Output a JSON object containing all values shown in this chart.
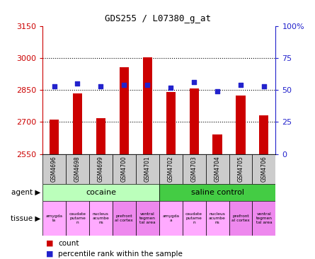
{
  "title": "GDS255 / L07380_g_at",
  "samples": [
    "GSM4696",
    "GSM4698",
    "GSM4699",
    "GSM4700",
    "GSM4701",
    "GSM4702",
    "GSM4703",
    "GSM4704",
    "GSM4705",
    "GSM4706"
  ],
  "counts": [
    2712,
    2833,
    2718,
    2958,
    3003,
    2840,
    2858,
    2643,
    2825,
    2730
  ],
  "percentiles": [
    53,
    55,
    53,
    54,
    54,
    52,
    56,
    49,
    54,
    53
  ],
  "ymin": 2550,
  "ymax": 3150,
  "yticks": [
    2550,
    2700,
    2850,
    3000,
    3150
  ],
  "right_yticks_pct": [
    0,
    25,
    50,
    75,
    100
  ],
  "right_ylabels": [
    "0",
    "25",
    "50",
    "75",
    "100%"
  ],
  "bar_color": "#cc0000",
  "dot_color": "#2222cc",
  "agent_cocaine_color": "#bbffbb",
  "agent_saline_color": "#44cc44",
  "tissue_pink_color": "#ffaaff",
  "tissue_purple_color": "#dd88dd",
  "sample_bg_color": "#cccccc",
  "gridline_ticks": [
    2700,
    2850,
    3000
  ],
  "agent_labels": [
    "cocaine",
    "saline control"
  ],
  "tissue_row": [
    "amygda\nla",
    "caudate\nputame\nn",
    "nucleus\nacumbe\nns",
    "prefront\nal cortex",
    "ventral\ntegmen\ntal area",
    "amygda\na",
    "caudate\nputame\nn",
    "nucleus\nacumbe\nns",
    "prefront\nal cortex",
    "ventral\ntegmen\ntal area"
  ],
  "tissue_colors": [
    "#ffaaff",
    "#ffaaff",
    "#ffaaff",
    "#ee88ee",
    "#ee88ee",
    "#ffaaff",
    "#ffaaff",
    "#ffaaff",
    "#ee88ee",
    "#ee88ee"
  ],
  "legend_count_label": "count",
  "legend_pct_label": "percentile rank within the sample"
}
